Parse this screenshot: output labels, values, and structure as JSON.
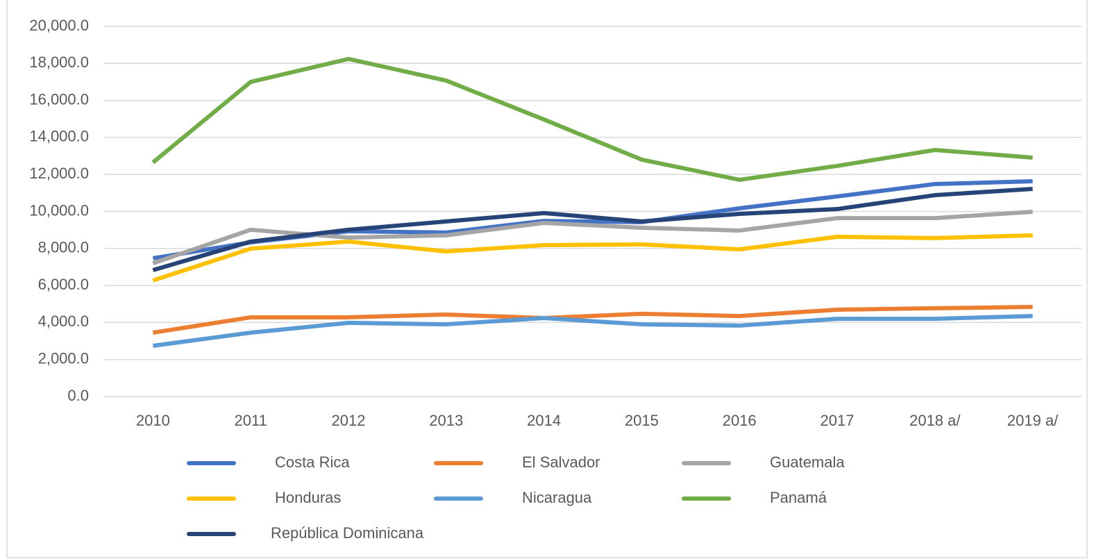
{
  "chart_data": {
    "type": "line",
    "categories": [
      "2010",
      "2011",
      "2012",
      "2013",
      "2014",
      "2015",
      "2016",
      "2017",
      "2018 a/",
      "2019 a/"
    ],
    "series": [
      {
        "name": "Costa Rica",
        "color": "#4472c4",
        "values": [
          7470,
          8330,
          8930,
          8860,
          9490,
          9420,
          10170,
          10810,
          11480,
          11630
        ]
      },
      {
        "name": "El Salvador",
        "color": "#ed7d31",
        "values": [
          3450,
          4280,
          4280,
          4430,
          4240,
          4470,
          4350,
          4690,
          4770,
          4840
        ]
      },
      {
        "name": "Guatemala",
        "color": "#a5a5a5",
        "values": [
          7200,
          9010,
          8590,
          8710,
          9380,
          9120,
          8970,
          9640,
          9640,
          9980
        ]
      },
      {
        "name": "Honduras",
        "color": "#ffc000",
        "values": [
          6270,
          7990,
          8370,
          7840,
          8180,
          8220,
          7950,
          8630,
          8560,
          8710
        ]
      },
      {
        "name": "Nicaragua",
        "color": "#5b9bd5",
        "values": [
          2740,
          3450,
          3980,
          3900,
          4240,
          3900,
          3830,
          4200,
          4200,
          4350
        ]
      },
      {
        "name": "Panamá",
        "color": "#70ad47",
        "values": [
          12650,
          17000,
          18240,
          17070,
          14970,
          12800,
          11710,
          12460,
          13320,
          12910
        ]
      },
      {
        "name": "República Dominicana",
        "color": "#264478",
        "values": [
          6830,
          8370,
          9010,
          9460,
          9910,
          9460,
          9870,
          10130,
          10880,
          11220
        ]
      }
    ],
    "ylim": [
      0,
      20000
    ],
    "yticks": [
      {
        "value": 0,
        "label": "0.0"
      },
      {
        "value": 2000,
        "label": "2,000.0"
      },
      {
        "value": 4000,
        "label": "4,000.0"
      },
      {
        "value": 6000,
        "label": "6,000.0"
      },
      {
        "value": 8000,
        "label": "8,000.0"
      },
      {
        "value": 10000,
        "label": "10,000.0"
      },
      {
        "value": 12000,
        "label": "12,000.0"
      },
      {
        "value": 14000,
        "label": "14,000.0"
      },
      {
        "value": 16000,
        "label": "16,000.0"
      },
      {
        "value": 18000,
        "label": "18,000.0"
      },
      {
        "value": 20000,
        "label": "20,000.0"
      }
    ],
    "grid": true,
    "legend": "bottom"
  }
}
